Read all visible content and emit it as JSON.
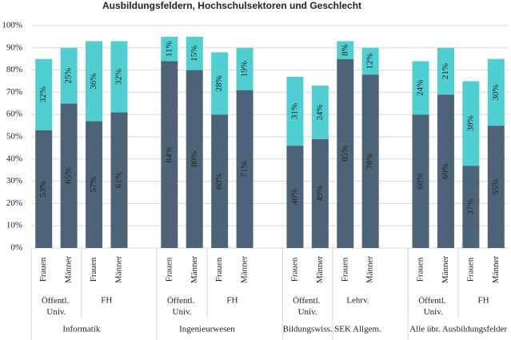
{
  "chart_data": {
    "type": "stacked-bar",
    "title": "Ausbildungsfeldern, Hochschulsektoren und Geschlecht",
    "categories": [
      [
        "Frauen",
        "Öffentl. Univ.",
        "Informatik"
      ],
      [
        "Männer",
        "Öffentl. Univ.",
        "Informatik"
      ],
      [
        "Frauen",
        "FH",
        "Informatik"
      ],
      [
        "Männer",
        "FH",
        "Informatik"
      ],
      null,
      [
        "Frauen",
        "Öffentl. Univ.",
        "Ingenieurwesen"
      ],
      [
        "Männer",
        "Öffentl. Univ.",
        "Ingenieurwesen"
      ],
      [
        "Frauen",
        "FH",
        "Ingenieurwesen"
      ],
      [
        "Männer",
        "FH",
        "Ingenieurwesen"
      ],
      null,
      [
        "Frauen",
        "Öffentl. Univ.",
        "Bildungswiss."
      ],
      [
        "Männer",
        "Öffentl. Univ.",
        "Bildungswiss."
      ],
      [
        "Frauen",
        "Lehrv.",
        "SEK Allgem."
      ],
      [
        "Männer",
        "Lehrv.",
        "SEK Allgem."
      ],
      null,
      [
        "Frauen",
        "Öffentl. Univ.",
        "Alle übr. Ausbildungsfelder"
      ],
      [
        "Männer",
        "Öffentl. Univ.",
        "Alle übr. Ausbildungsfelder"
      ],
      [
        "Frauen",
        "FH",
        "Alle übr. Ausbildungsfelder"
      ],
      [
        "Männer",
        "FH",
        "Alle übr. Ausbildungsfelder"
      ]
    ],
    "series": [
      {
        "color": "#4d6478",
        "label_color": "#c6ced6",
        "values": [
          53,
          65,
          57,
          61,
          null,
          84,
          80,
          60,
          71,
          null,
          46,
          49,
          85,
          78,
          null,
          60,
          69,
          37,
          55
        ],
        "value_labels": [
          "53%",
          "65%",
          "57%",
          "61%",
          null,
          "84%",
          "80%",
          "60%",
          "71%",
          null,
          "46%",
          "49%",
          "85%",
          "78%",
          null,
          "60%",
          "69%",
          "37%",
          "55%"
        ]
      },
      {
        "color": "#4fcfd2",
        "label_color": "#222222",
        "values": [
          32,
          25,
          36,
          32,
          null,
          11,
          15,
          28,
          19,
          null,
          31,
          24,
          8,
          12,
          null,
          24,
          21,
          38,
          30
        ],
        "value_labels": [
          "32%",
          "25%",
          "36%",
          "32%",
          null,
          "11%",
          "15%",
          "28%",
          "19%",
          null,
          "31%",
          "24%",
          "8%",
          "12%",
          null,
          "24%",
          "21%",
          "38%",
          "30%"
        ]
      }
    ],
    "ylim": [
      0,
      100
    ],
    "yticks": [
      {
        "value": 0,
        "label": "0%"
      },
      {
        "value": 10,
        "label": "10%"
      },
      {
        "value": 20,
        "label": "20%"
      },
      {
        "value": 30,
        "label": "30%"
      },
      {
        "value": 40,
        "label": "40%"
      },
      {
        "value": 50,
        "label": "50%"
      },
      {
        "value": 60,
        "label": "60%"
      },
      {
        "value": 70,
        "label": "70%"
      },
      {
        "value": 80,
        "label": "80%"
      },
      {
        "value": 90,
        "label": "90%"
      },
      {
        "value": 100,
        "label": "100%"
      }
    ],
    "grid": true
  }
}
